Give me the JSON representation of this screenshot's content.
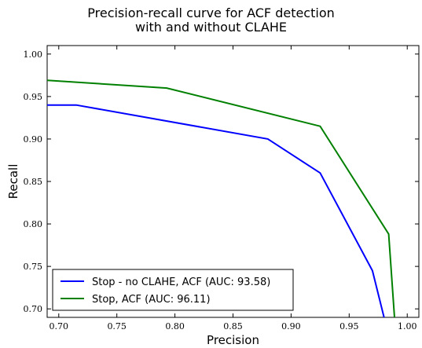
{
  "chart_data": {
    "type": "line",
    "title": [
      "Precision-recall curve for ACF detection",
      "with and without CLAHE"
    ],
    "xlabel": "Precision",
    "ylabel": "Recall",
    "xlim": [
      0.69,
      1.01
    ],
    "ylim": [
      0.69,
      1.01
    ],
    "xticks": [
      "0.70",
      "0.75",
      "0.80",
      "0.85",
      "0.90",
      "0.95",
      "1.00"
    ],
    "yticks": [
      "0.70",
      "0.75",
      "0.80",
      "0.85",
      "0.90",
      "0.95",
      "1.00"
    ],
    "grid": false,
    "legend_position": "lower-left",
    "series": [
      {
        "name": "Stop - no CLAHE, ACF (AUC: 93.58)",
        "color": "#0000ff",
        "x": [
          0.69,
          0.715,
          0.88,
          0.925,
          0.97,
          0.98
        ],
        "y": [
          0.94,
          0.94,
          0.9,
          0.86,
          0.745,
          0.69
        ]
      },
      {
        "name": "Stop, ACF (AUC: 96.11)",
        "color": "#008000",
        "x": [
          0.69,
          0.793,
          0.925,
          0.984,
          0.989
        ],
        "y": [
          0.969,
          0.96,
          0.915,
          0.788,
          0.69
        ]
      }
    ]
  }
}
